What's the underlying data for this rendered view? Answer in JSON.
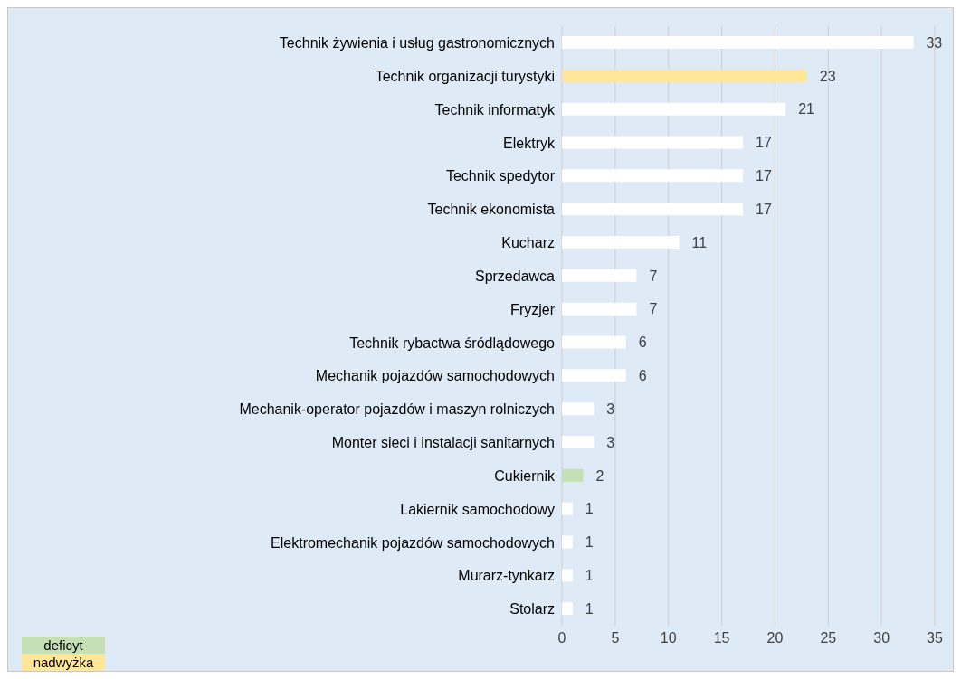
{
  "chart_data": {
    "type": "bar",
    "orientation": "horizontal",
    "stacked": true,
    "categories": [
      "Technik żywienia i usług gastronomicznych",
      "Technik organizacji turystyki",
      "Technik informatyk",
      "Elektryk",
      "Technik spedytor",
      "Technik ekonomista",
      "Kucharz",
      "Sprzedawca",
      "Fryzjer",
      "Technik rybactwa śródlądowego",
      "Mechanik pojazdów samochodowych",
      "Mechanik-operator pojazdów i maszyn rolniczych",
      "Monter sieci i instalacji sanitarnych",
      "Cukiernik",
      "Lakiernik samochodowy",
      "Elektromechanik pojazdów samochodowych",
      "Murarz-tynkarz",
      "Stolarz"
    ],
    "series": [
      {
        "color": "#ffffff",
        "values": [
          33,
          null,
          21,
          17,
          17,
          17,
          11,
          7,
          7,
          6,
          6,
          3,
          3,
          null,
          1,
          1,
          1,
          1
        ]
      },
      {
        "name": "deficyt",
        "color": "#c5e0b4",
        "values": [
          null,
          null,
          null,
          null,
          null,
          null,
          null,
          null,
          null,
          null,
          null,
          null,
          null,
          2,
          null,
          null,
          null,
          null
        ]
      },
      {
        "name": "nadwyżka",
        "color": "#ffe699",
        "values": [
          null,
          23,
          null,
          null,
          null,
          null,
          null,
          null,
          null,
          null,
          null,
          null,
          null,
          null,
          null,
          null,
          null,
          null
        ]
      }
    ],
    "xlim": [
      0,
      35
    ],
    "xticks": [
      0,
      5,
      10,
      15,
      20,
      25,
      30,
      35
    ],
    "grid": "x",
    "legend": "bottom left",
    "data_labels": true
  }
}
